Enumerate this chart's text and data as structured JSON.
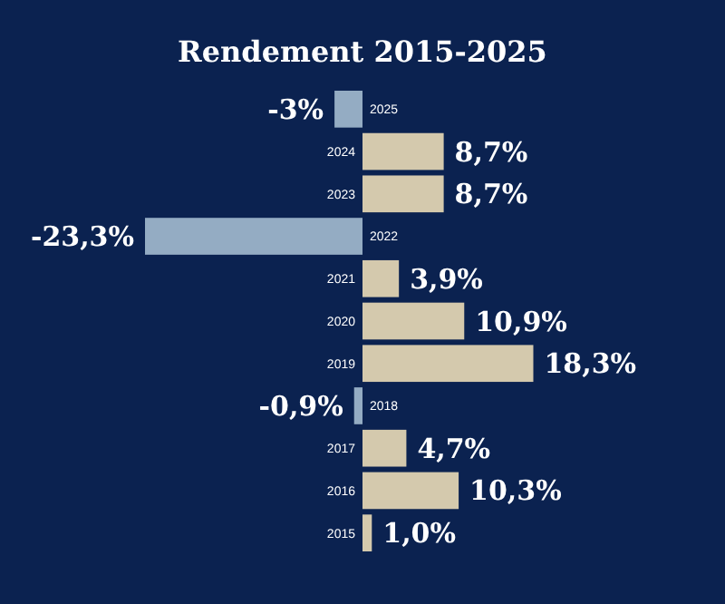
{
  "chart_data": {
    "type": "bar",
    "orientation": "horizontal",
    "title": "Rendement 2015-2025",
    "categories": [
      "2025",
      "2024",
      "2023",
      "2022",
      "2021",
      "2020",
      "2019",
      "2018",
      "2017",
      "2016",
      "2015"
    ],
    "values": [
      -3,
      8.7,
      8.7,
      -23.3,
      3.9,
      10.9,
      18.3,
      -0.9,
      4.7,
      10.3,
      1.0
    ],
    "colors": [
      "#94acc3",
      "#d4c9ad",
      "#d4c9ad",
      "#94acc3",
      "#d4c9ad",
      "#d4c9ad",
      "#d4c9ad",
      "#94acc3",
      "#d4c9ad",
      "#d4c9ad",
      "#d4c9ad"
    ],
    "value_labels": [
      "-3%",
      "8,7%",
      "8,7%",
      "-23,3%",
      "3,9%",
      "10,9%",
      "18,3%",
      "-0,9%",
      "4,7%",
      "10,3%",
      "1,0%"
    ]
  }
}
